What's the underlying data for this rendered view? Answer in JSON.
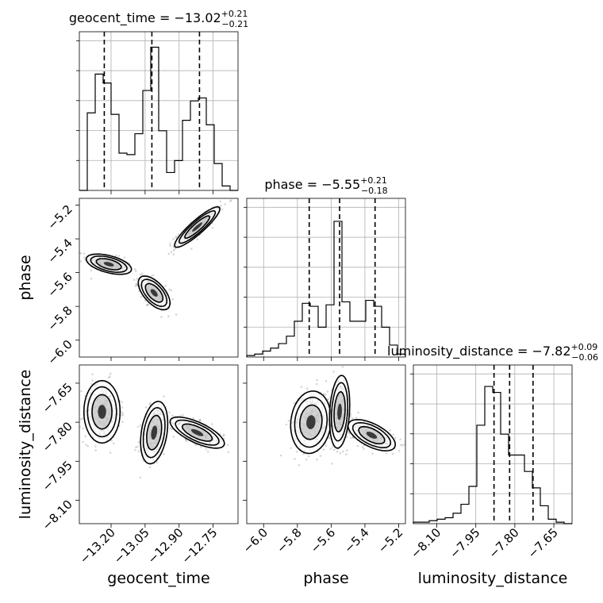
{
  "chart_data": {
    "type": "corner",
    "parameters": [
      {
        "name": "geocent_time",
        "label": "geocent_time",
        "title_text": "geocent_time = −13.02",
        "title_plus": "+0.21",
        "title_minus": "−0.21",
        "median": -13.02,
        "err_plus": 0.21,
        "err_minus": 0.21,
        "quantile_lines": [
          -13.23,
          -13.02,
          -12.81
        ],
        "range": [
          -13.34,
          -12.64
        ],
        "ticks": [
          -13.2,
          -13.05,
          -12.9,
          -12.75
        ],
        "tick_labels": [
          "−13.20",
          "−13.05",
          "−12.90",
          "−12.75"
        ],
        "hist": [
          {
            "lo": -13.34,
            "hi": -13.305,
            "count": 0
          },
          {
            "lo": -13.305,
            "hi": -13.27,
            "count": 0.52
          },
          {
            "lo": -13.27,
            "hi": -13.235,
            "count": 0.78
          },
          {
            "lo": -13.235,
            "hi": -13.2,
            "count": 0.72
          },
          {
            "lo": -13.2,
            "hi": -13.165,
            "count": 0.51
          },
          {
            "lo": -13.165,
            "hi": -13.13,
            "count": 0.25
          },
          {
            "lo": -13.13,
            "hi": -13.095,
            "count": 0.24
          },
          {
            "lo": -13.095,
            "hi": -13.06,
            "count": 0.38
          },
          {
            "lo": -13.06,
            "hi": -13.025,
            "count": 0.67
          },
          {
            "lo": -13.025,
            "hi": -12.99,
            "count": 0.96
          },
          {
            "lo": -12.99,
            "hi": -12.955,
            "count": 0.4
          },
          {
            "lo": -12.955,
            "hi": -12.92,
            "count": 0.12
          },
          {
            "lo": -12.92,
            "hi": -12.885,
            "count": 0.2
          },
          {
            "lo": -12.885,
            "hi": -12.85,
            "count": 0.47
          },
          {
            "lo": -12.85,
            "hi": -12.815,
            "count": 0.6
          },
          {
            "lo": -12.815,
            "hi": -12.78,
            "count": 0.62
          },
          {
            "lo": -12.78,
            "hi": -12.745,
            "count": 0.44
          },
          {
            "lo": -12.745,
            "hi": -12.71,
            "count": 0.18
          },
          {
            "lo": -12.71,
            "hi": -12.675,
            "count": 0.03
          },
          {
            "lo": -12.675,
            "hi": -12.64,
            "count": 0
          }
        ]
      },
      {
        "name": "phase",
        "label": "phase",
        "title_text": "phase = −5.55",
        "title_plus": "+0.21",
        "title_minus": "−0.18",
        "median": -5.55,
        "err_plus": 0.21,
        "err_minus": 0.18,
        "quantile_lines": [
          -5.73,
          -5.55,
          -5.34
        ],
        "range": [
          -6.1,
          -5.16
        ],
        "ticks": [
          -6.0,
          -5.8,
          -5.6,
          -5.4,
          -5.2
        ],
        "tick_labels": [
          "−6.0",
          "−5.8",
          "−5.6",
          "−5.4",
          "−5.2"
        ],
        "hist": [
          {
            "lo": -6.1,
            "hi": -6.053,
            "count": 0.01
          },
          {
            "lo": -6.053,
            "hi": -6.006,
            "count": 0.02
          },
          {
            "lo": -6.006,
            "hi": -5.959,
            "count": 0.04
          },
          {
            "lo": -5.959,
            "hi": -5.912,
            "count": 0.06
          },
          {
            "lo": -5.912,
            "hi": -5.865,
            "count": 0.09
          },
          {
            "lo": -5.865,
            "hi": -5.818,
            "count": 0.14
          },
          {
            "lo": -5.818,
            "hi": -5.771,
            "count": 0.24
          },
          {
            "lo": -5.771,
            "hi": -5.724,
            "count": 0.36
          },
          {
            "lo": -5.724,
            "hi": -5.677,
            "count": 0.34
          },
          {
            "lo": -5.677,
            "hi": -5.63,
            "count": 0.2
          },
          {
            "lo": -5.63,
            "hi": -5.583,
            "count": 0.35
          },
          {
            "lo": -5.583,
            "hi": -5.536,
            "count": 0.91
          },
          {
            "lo": -5.536,
            "hi": -5.489,
            "count": 0.37
          },
          {
            "lo": -5.489,
            "hi": -5.442,
            "count": 0.24
          },
          {
            "lo": -5.442,
            "hi": -5.395,
            "count": 0.24
          },
          {
            "lo": -5.395,
            "hi": -5.348,
            "count": 0.38
          },
          {
            "lo": -5.348,
            "hi": -5.301,
            "count": 0.34
          },
          {
            "lo": -5.301,
            "hi": -5.254,
            "count": 0.2
          },
          {
            "lo": -5.254,
            "hi": -5.207,
            "count": 0.08
          },
          {
            "lo": -5.207,
            "hi": -5.16,
            "count": 0.02
          }
        ]
      },
      {
        "name": "luminosity_distance",
        "label": "luminosity_distance",
        "title_text": "luminosity_distance = −7.82",
        "title_plus": "+0.09",
        "title_minus": "−0.06",
        "median": -7.82,
        "err_plus": 0.09,
        "err_minus": 0.06,
        "quantile_lines": [
          -7.88,
          -7.82,
          -7.73
        ],
        "range": [
          -8.19,
          -7.58
        ],
        "ticks": [
          -8.1,
          -7.95,
          -7.8,
          -7.65
        ],
        "tick_labels": [
          "−8.10",
          "−7.95",
          "−7.80",
          "−7.65"
        ],
        "hist": [
          {
            "lo": -8.19,
            "hi": -8.1595,
            "count": 0.01
          },
          {
            "lo": -8.1595,
            "hi": -8.129,
            "count": 0.01
          },
          {
            "lo": -8.129,
            "hi": -8.0985,
            "count": 0.02
          },
          {
            "lo": -8.0985,
            "hi": -8.068,
            "count": 0.03
          },
          {
            "lo": -8.068,
            "hi": -8.0375,
            "count": 0.04
          },
          {
            "lo": -8.0375,
            "hi": -8.007,
            "count": 0.07
          },
          {
            "lo": -8.007,
            "hi": -7.9765,
            "count": 0.13
          },
          {
            "lo": -7.9765,
            "hi": -7.946,
            "count": 0.25
          },
          {
            "lo": -7.946,
            "hi": -7.9155,
            "count": 0.66
          },
          {
            "lo": -7.9155,
            "hi": -7.885,
            "count": 0.92
          },
          {
            "lo": -7.885,
            "hi": -7.8545,
            "count": 0.88
          },
          {
            "lo": -7.8545,
            "hi": -7.824,
            "count": 0.6
          },
          {
            "lo": -7.824,
            "hi": -7.7935,
            "count": 0.46
          },
          {
            "lo": -7.7935,
            "hi": -7.763,
            "count": 0.46
          },
          {
            "lo": -7.763,
            "hi": -7.7325,
            "count": 0.35
          },
          {
            "lo": -7.7325,
            "hi": -7.702,
            "count": 0.24
          },
          {
            "lo": -7.702,
            "hi": -7.6715,
            "count": 0.12
          },
          {
            "lo": -7.6715,
            "hi": -7.641,
            "count": 0.03
          },
          {
            "lo": -7.641,
            "hi": -7.6105,
            "count": 0.01
          },
          {
            "lo": -7.6105,
            "hi": -7.58,
            "count": 0
          }
        ]
      }
    ],
    "pairs": [
      {
        "x_param": "geocent_time",
        "y_param": "phase",
        "modes": [
          {
            "x": -13.21,
            "y": -5.55,
            "sx": 0.05,
            "sy": 0.03,
            "rho": -0.5,
            "weight": 0.4
          },
          {
            "x": -13.01,
            "y": -5.72,
            "sx": 0.035,
            "sy": 0.05,
            "rho": -0.6,
            "weight": 0.3
          },
          {
            "x": -12.82,
            "y": -5.33,
            "sx": 0.05,
            "sy": 0.06,
            "rho": 0.9,
            "weight": 0.3
          }
        ]
      },
      {
        "x_param": "geocent_time",
        "y_param": "luminosity_distance",
        "modes": [
          {
            "x": -13.24,
            "y": -7.76,
            "sx": 0.04,
            "sy": 0.06,
            "rho": 0.0,
            "weight": 0.4
          },
          {
            "x": -13.01,
            "y": -7.84,
            "sx": 0.03,
            "sy": 0.06,
            "rho": 0.3,
            "weight": 0.3
          },
          {
            "x": -12.82,
            "y": -7.84,
            "sx": 0.06,
            "sy": 0.03,
            "rho": -0.7,
            "weight": 0.3
          }
        ]
      },
      {
        "x_param": "phase",
        "y_param": "luminosity_distance",
        "modes": [
          {
            "x": -5.72,
            "y": -7.8,
            "sx": 0.06,
            "sy": 0.06,
            "rho": 0.1,
            "weight": 0.4
          },
          {
            "x": -5.55,
            "y": -7.76,
            "sx": 0.03,
            "sy": 0.07,
            "rho": 0.2,
            "weight": 0.3
          },
          {
            "x": -5.36,
            "y": -7.85,
            "sx": 0.07,
            "sy": 0.03,
            "rho": -0.6,
            "weight": 0.3
          }
        ]
      }
    ],
    "grid": true,
    "colors": {
      "line": "#000000",
      "points": "#8c8c8c",
      "grid": "#b0b0b0"
    }
  }
}
